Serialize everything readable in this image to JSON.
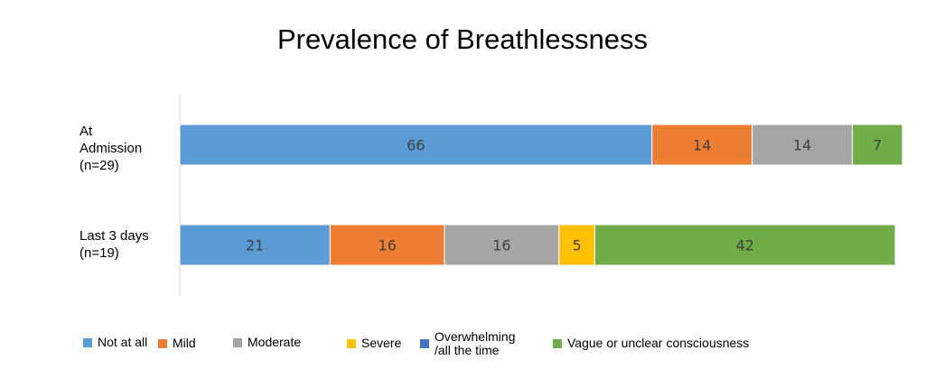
{
  "chart_data": {
    "type": "bar",
    "orientation": "horizontal",
    "stacked": true,
    "title": "Prevalence of Breathlessness",
    "categories": [
      "At\nAdmission\n(n=29)",
      "Last 3 days\n(n=19)"
    ],
    "series": [
      {
        "name": "Not at all",
        "color": "#5b9bd5",
        "values": [
          66,
          21
        ]
      },
      {
        "name": "Mild",
        "color": "#ed7d31",
        "values": [
          14,
          16
        ]
      },
      {
        "name": "Moderate",
        "color": "#a5a5a5",
        "values": [
          14,
          16
        ]
      },
      {
        "name": "Severe",
        "color": "#ffc000",
        "values": [
          0,
          5
        ]
      },
      {
        "name": "Overwhelming\n/all the time",
        "color": "#4472c4",
        "values": [
          0,
          0
        ]
      },
      {
        "name": "Vague or unclear consciousness",
        "color": "#70ad47",
        "values": [
          7,
          42
        ]
      }
    ],
    "xlim": [
      0,
      101
    ],
    "grid": false,
    "legend_position": "bottom"
  }
}
